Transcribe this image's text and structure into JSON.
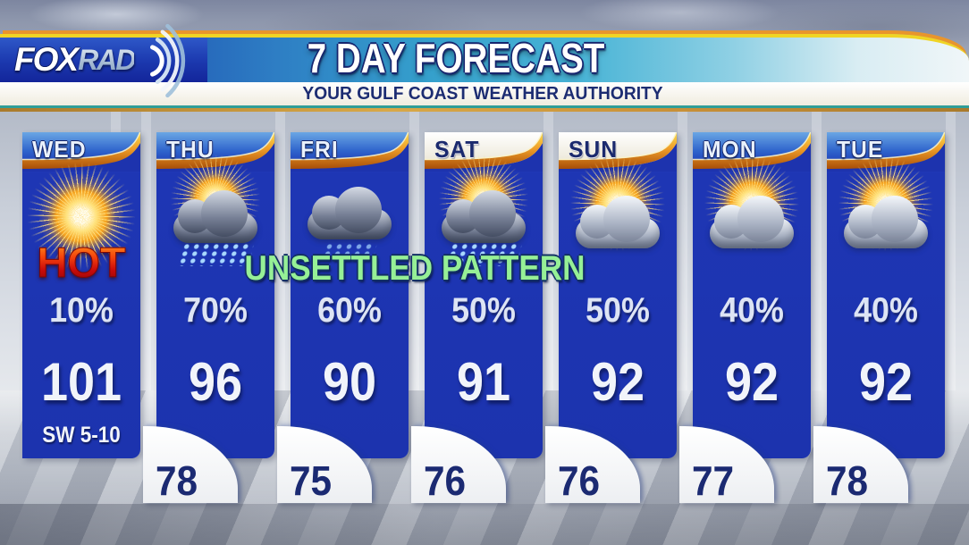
{
  "header": {
    "brand": {
      "fox": "FOX",
      "rad": "RAD"
    },
    "title": "7 DAY FORECAST",
    "subtitle": "YOUR GULF COAST WEATHER AUTHORITY"
  },
  "overlay": {
    "text": "UNSETTLED PATTERN"
  },
  "days": [
    {
      "name": "WED",
      "tab": "blue",
      "icon": "hot-sun-icon",
      "tag": "HOT",
      "pop": "10%",
      "high": "101",
      "low": null,
      "wind": "SW 5-10"
    },
    {
      "name": "THU",
      "tab": "blue",
      "icon": "storm-rain-sun-icon",
      "tag": null,
      "pop": "70%",
      "high": "96",
      "low": "78",
      "wind": null
    },
    {
      "name": "FRI",
      "tab": "blue",
      "icon": "rain-cloud-icon",
      "tag": null,
      "pop": "60%",
      "high": "90",
      "low": "75",
      "wind": null
    },
    {
      "name": "SAT",
      "tab": "white",
      "icon": "storm-rain-sun-icon",
      "tag": null,
      "pop": "50%",
      "high": "91",
      "low": "76",
      "wind": null
    },
    {
      "name": "SUN",
      "tab": "white",
      "icon": "sun-cloud-icon",
      "tag": null,
      "pop": "50%",
      "high": "92",
      "low": "76",
      "wind": null
    },
    {
      "name": "MON",
      "tab": "blue",
      "icon": "sun-cloud-icon",
      "tag": null,
      "pop": "40%",
      "high": "92",
      "low": "77",
      "wind": null
    },
    {
      "name": "TUE",
      "tab": "blue",
      "icon": "sun-cloud-icon",
      "tag": null,
      "pop": "40%",
      "high": "92",
      "low": "78",
      "wind": null
    }
  ],
  "layout_hints": {
    "column_lefts": [
      25,
      175,
      325,
      475,
      625,
      775,
      925
    ]
  },
  "colors": {
    "column_blue": "#1e36b2",
    "swoosh_orange": "#ef9d28",
    "gold_line": "#f0d424",
    "weekend_tab": "#ffffff",
    "pattern_green": "#96f096",
    "hot_red": "#c90b0b",
    "low_navy": "#1b2a72",
    "subtitle_navy": "#1c2c72"
  }
}
